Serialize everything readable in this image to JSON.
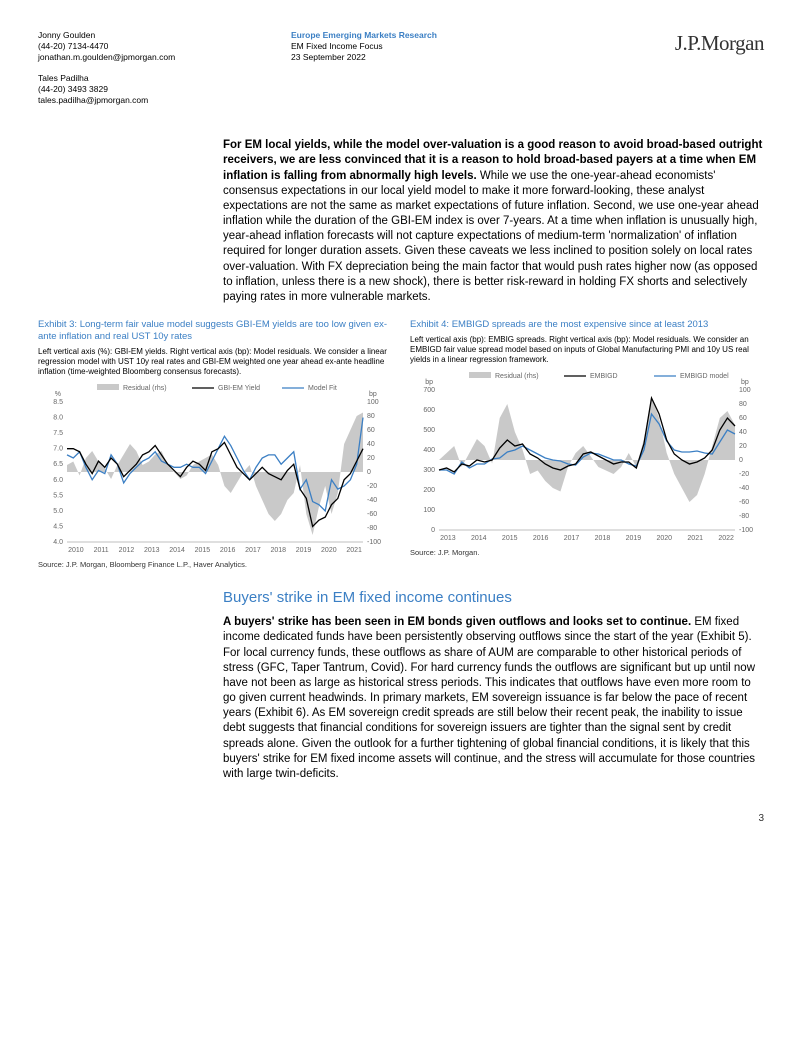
{
  "header": {
    "authors": [
      {
        "name": "Jonny Goulden",
        "phone": "(44-20) 7134-4470",
        "email": "jonathan.m.goulden@jpmorgan.com"
      },
      {
        "name": "Tales Padilha",
        "phone": "(44-20) 3493 3829",
        "email": "tales.padilha@jpmorgan.com"
      }
    ],
    "research_line": "Europe Emerging Markets Research",
    "subtitle": "EM Fixed Income Focus",
    "date": "23 September 2022",
    "logo": "J.P.Morgan"
  },
  "para1": {
    "bold": "For EM local yields, while the model over-valuation is a good reason to avoid broad-based outright receivers, we are less convinced that it is a reason to hold broad-based payers at a time when EM inflation is falling from abnormally high levels.",
    "rest": " While we use the one-year-ahead economists' consensus expectations in our local yield model to make it more forward-looking, these analyst expectations are not the same as market expectations of future inflation. Second, we use one-year ahead inflation while the duration of the GBI-EM index is over 7-years. At a time when inflation is unusually high, year-ahead inflation forecasts will not capture expectations of medium-term 'normalization' of inflation required for longer duration assets. Given these caveats we less inclined to position solely on local rates over-valuation. With FX depreciation being the main factor that would push rates higher now (as opposed to inflation, unless there is a new shock), there is better risk-reward in holding FX shorts and selectively paying rates in more vulnerable markets."
  },
  "exhibit3": {
    "title": "Exhibit 3: Long-term fair value model suggests GBI-EM yields are too low given ex-ante inflation and real UST 10y rates",
    "desc": "Left vertical axis (%): GBI-EM yields. Right vertical axis (bp): Model residuals. We consider a linear regression model with UST 10y real rates and GBI-EM weighted one year ahead ex-ante headline inflation (time-weighted Bloomberg consensus forecasts).",
    "source": "Source: J.P. Morgan, Bloomberg Finance L.P., Haver Analytics.",
    "legend": [
      "Residual (rhs)",
      "GBI-EM Yield",
      "Model Fit"
    ],
    "left_label": "%",
    "right_label": "bp",
    "left_ticks": [
      "8.5",
      "8.0",
      "7.5",
      "7.0",
      "6.5",
      "6.0",
      "5.5",
      "5.0",
      "4.5",
      "4.0"
    ],
    "right_ticks": [
      "100",
      "80",
      "60",
      "40",
      "20",
      "0",
      "-20",
      "-40",
      "-60",
      "-80",
      "-100"
    ],
    "x_ticks": [
      "2010",
      "2011",
      "2012",
      "2013",
      "2014",
      "2015",
      "2016",
      "2017",
      "2018",
      "2019",
      "2020",
      "2021"
    ],
    "colors": {
      "residual": "#c9c9c9",
      "actual": "#000000",
      "model": "#3b7fc4",
      "axis": "#808080",
      "tick_text": "#666666"
    },
    "residual": [
      10,
      15,
      -5,
      20,
      30,
      15,
      5,
      -10,
      10,
      25,
      40,
      30,
      10,
      15,
      25,
      30,
      10,
      0,
      -10,
      -5,
      10,
      15,
      20,
      25,
      10,
      -20,
      -30,
      -15,
      0,
      10,
      -20,
      -40,
      -60,
      -70,
      -60,
      -40,
      -30,
      10,
      -60,
      -90,
      -50,
      -20,
      -60,
      -30,
      40,
      60,
      80,
      85
    ],
    "actual": [
      7.0,
      7.0,
      6.9,
      6.5,
      6.2,
      6.6,
      6.4,
      6.7,
      6.5,
      6.1,
      6.3,
      6.5,
      6.8,
      6.9,
      7.1,
      6.8,
      6.5,
      6.3,
      6.1,
      6.4,
      6.6,
      6.5,
      6.3,
      6.9,
      7.0,
      7.2,
      6.8,
      6.4,
      6.2,
      6.0,
      6.2,
      6.4,
      6.2,
      6.1,
      6.0,
      6.3,
      6.5,
      5.7,
      5.4,
      4.5,
      4.7,
      4.8,
      5.2,
      5.4,
      6.0,
      6.2,
      6.6,
      7.0
    ],
    "model": [
      6.8,
      6.7,
      6.9,
      6.4,
      6.0,
      6.3,
      6.2,
      6.8,
      6.5,
      5.9,
      6.2,
      6.4,
      6.6,
      6.7,
      6.9,
      6.6,
      6.5,
      6.4,
      6.4,
      6.5,
      6.4,
      6.4,
      6.2,
      6.6,
      7.0,
      7.4,
      7.1,
      6.7,
      6.3,
      6.0,
      6.4,
      6.7,
      6.8,
      6.8,
      6.5,
      6.7,
      6.9,
      5.7,
      6.0,
      5.3,
      5.2,
      5.0,
      6.0,
      5.7,
      5.8,
      6.0,
      6.5,
      8.0
    ],
    "ylim_left": [
      4.0,
      8.5
    ],
    "ylim_right": [
      -100,
      100
    ]
  },
  "exhibit4": {
    "title": "Exhibit 4: EMBIGD spreads are the most expensive since at least 2013",
    "desc": "Left vertical axis (bp): EMBIG spreads. Right vertical axis (bp): Model residuals. We consider an EMBIGD fair value spread model based on inputs of Global Manufacturing PMI and 10y US real yields in a linear regression framework.",
    "source": "Source: J.P. Morgan.",
    "legend": [
      "Residual (rhs)",
      "EMBIGD",
      "EMBIGD model"
    ],
    "left_label": "bp",
    "right_label": "bp",
    "left_ticks": [
      "700",
      "600",
      "500",
      "400",
      "300",
      "200",
      "100",
      "0"
    ],
    "right_ticks": [
      "100",
      "80",
      "60",
      "40",
      "20",
      "0",
      "-20",
      "-40",
      "-60",
      "-80",
      "-100"
    ],
    "x_ticks": [
      "2013",
      "2014",
      "2015",
      "2016",
      "2017",
      "2018",
      "2019",
      "2020",
      "2021",
      "2022"
    ],
    "colors": {
      "residual": "#c9c9c9",
      "actual": "#000000",
      "model": "#3b7fc4",
      "axis": "#808080",
      "tick_text": "#666666"
    },
    "residual": [
      0,
      10,
      20,
      -10,
      10,
      30,
      20,
      -5,
      60,
      80,
      40,
      15,
      -20,
      -15,
      -30,
      -40,
      -45,
      -10,
      10,
      20,
      5,
      -10,
      -15,
      -20,
      -10,
      10,
      -10,
      30,
      90,
      60,
      10,
      -20,
      -40,
      -60,
      -50,
      -20,
      20,
      60,
      70,
      50
    ],
    "actual": [
      300,
      310,
      290,
      330,
      320,
      350,
      340,
      350,
      410,
      450,
      420,
      430,
      380,
      360,
      330,
      310,
      300,
      320,
      330,
      380,
      390,
      370,
      350,
      330,
      340,
      340,
      310,
      430,
      660,
      580,
      450,
      380,
      350,
      330,
      340,
      360,
      400,
      500,
      560,
      520
    ],
    "model": [
      300,
      300,
      280,
      340,
      310,
      330,
      330,
      355,
      360,
      390,
      400,
      420,
      400,
      380,
      360,
      350,
      345,
      330,
      325,
      365,
      385,
      380,
      365,
      350,
      350,
      330,
      320,
      400,
      580,
      530,
      445,
      400,
      390,
      390,
      395,
      385,
      380,
      440,
      500,
      480
    ],
    "ylim_left": [
      0,
      700
    ],
    "ylim_right": [
      -100,
      100
    ]
  },
  "section2_head": "Buyers' strike in EM fixed income continues",
  "para2": {
    "bold": "A buyers' strike has been seen in EM bonds given outflows and looks set to continue.",
    "rest": " EM fixed income dedicated funds have been persistently observing outflows since the start of the year (Exhibit 5). For local currency funds, these outflows as share of AUM are comparable to other historical periods of stress (GFC, Taper Tantrum, Covid). For hard currency funds the outflows are significant but up until now have not been as large as historical stress periods. This indicates that outflows have even more room to go given current headwinds.  In primary markets, EM sovereign issuance is far below the pace of recent years (Exhibit 6). As EM sovereign credit spreads are still below their recent peak, the inability to issue debt suggests that financial conditions for sovereign issuers are tighter than the signal sent by credit spreads alone. Given the outlook for a further tightening of global financial conditions, it is likely that this buyers' strike for EM fixed income assets will continue, and the stress will accumulate for those countries with large twin-deficits."
  },
  "page_number": "3"
}
